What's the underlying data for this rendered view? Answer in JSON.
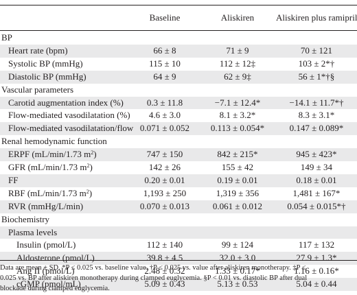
{
  "columns": [
    "Baseline",
    "Aliskiren",
    "Aliskiren plus ramipril"
  ],
  "rows": [
    {
      "label": "BP",
      "indent": 0,
      "shade": false,
      "v": [
        "",
        "",
        ""
      ]
    },
    {
      "label": "Heart rate (bpm)",
      "indent": 1,
      "shade": true,
      "v": [
        "66 ± 8",
        "71 ± 9",
        "70 ± 121"
      ]
    },
    {
      "label": "Systolic BP (mmHg)",
      "indent": 1,
      "shade": false,
      "v": [
        "115 ± 10",
        "112 ± 12‡",
        "103 ± 2*†"
      ]
    },
    {
      "label": "Diastolic BP (mmHg)",
      "indent": 1,
      "shade": true,
      "v": [
        "64 ± 9",
        "62 ± 9‡",
        "56 ± 1*†§"
      ]
    },
    {
      "label": "Vascular parameters",
      "indent": 0,
      "shade": false,
      "v": [
        "",
        "",
        ""
      ]
    },
    {
      "label": "Carotid augmentation index (%)",
      "indent": 1,
      "shade": true,
      "v": [
        "0.3 ± 11.8",
        "−7.1 ± 12.4*",
        "−14.1 ± 11.7*†"
      ]
    },
    {
      "label": "Flow-mediated vasodilatation (%)",
      "indent": 1,
      "shade": false,
      "v": [
        "4.6 ± 3.0",
        "8.1 ± 3.2*",
        "8.3 ± 3.1*"
      ]
    },
    {
      "label": "Flow-mediated vasodilatation/flow",
      "indent": 1,
      "shade": true,
      "v": [
        "0.071 ± 0.052",
        "0.113 ± 0.054*",
        "0.147 ± 0.089*"
      ]
    },
    {
      "label": "Renal hemodynamic function",
      "indent": 0,
      "shade": false,
      "v": [
        "",
        "",
        ""
      ]
    },
    {
      "label": "ERPF (mL/min/1.73 m",
      "sup": "2",
      "label_end": ")",
      "indent": 1,
      "shade": true,
      "v": [
        "747 ± 150",
        "842 ± 215*",
        "945 ± 423*"
      ]
    },
    {
      "label": "GFR (mL/min/1.73 m",
      "sup": "2",
      "label_end": ")",
      "indent": 1,
      "shade": false,
      "v": [
        "142 ± 26",
        "155 ± 42",
        "149 ± 34"
      ]
    },
    {
      "label": "FF",
      "indent": 1,
      "shade": true,
      "v": [
        "0.20 ± 0.01",
        "0.19 ± 0.01",
        "0.18 ± 0.01"
      ]
    },
    {
      "label": "RBF (mL/min/1.73 m",
      "sup": "2",
      "label_end": ")",
      "indent": 1,
      "shade": false,
      "v": [
        "1,193 ± 250",
        "1,319 ± 356",
        "1,481 ± 167*"
      ]
    },
    {
      "label": "RVR (mmHg/L/min)",
      "indent": 1,
      "shade": true,
      "v": [
        "0.070 ± 0.013",
        "0.061 ± 0.012",
        "0.054 ± 0.015*†"
      ]
    },
    {
      "label": "Biochemistry",
      "indent": 0,
      "shade": false,
      "v": [
        "",
        "",
        ""
      ]
    },
    {
      "label": "Plasma levels",
      "indent": 1,
      "shade": true,
      "v": [
        "",
        "",
        ""
      ]
    },
    {
      "label": "Insulin (pmol/L)",
      "indent": 2,
      "shade": false,
      "v": [
        "112 ± 140",
        "99 ± 124",
        "117 ± 132"
      ]
    },
    {
      "label": "Aldosterone (pmol/L)",
      "indent": 2,
      "shade": true,
      "v": [
        "39.8 ± 4.5",
        "32.0 ± 3.0",
        "27.9 ± 1.3*"
      ]
    },
    {
      "label": "Ang II (pmol/L)",
      "indent": 2,
      "shade": false,
      "v": [
        "2.48 ± 0.32",
        "1.33 ± 0.17*",
        "1.16 ± 0.16*"
      ]
    },
    {
      "label": "cGMP (pmol/mL)",
      "indent": 2,
      "shade": true,
      "v": [
        "5.09 ± 0.43",
        "5.13 ± 0.53",
        "5.04 ± 0.44"
      ]
    }
  ],
  "footnote_lines": [
    "Data are mean ± SD. *P ≤ 0.025 vs. baseline value. †P ≤ 0.025 vs. value after aliskiren monotherapy. ‡P ≤",
    "0.025 vs. BP after aliskiren monotherapy during clamped euglycemia. §P < 0.01 vs. diastolic BP after dual",
    "blockade during clamped euglycemia."
  ]
}
